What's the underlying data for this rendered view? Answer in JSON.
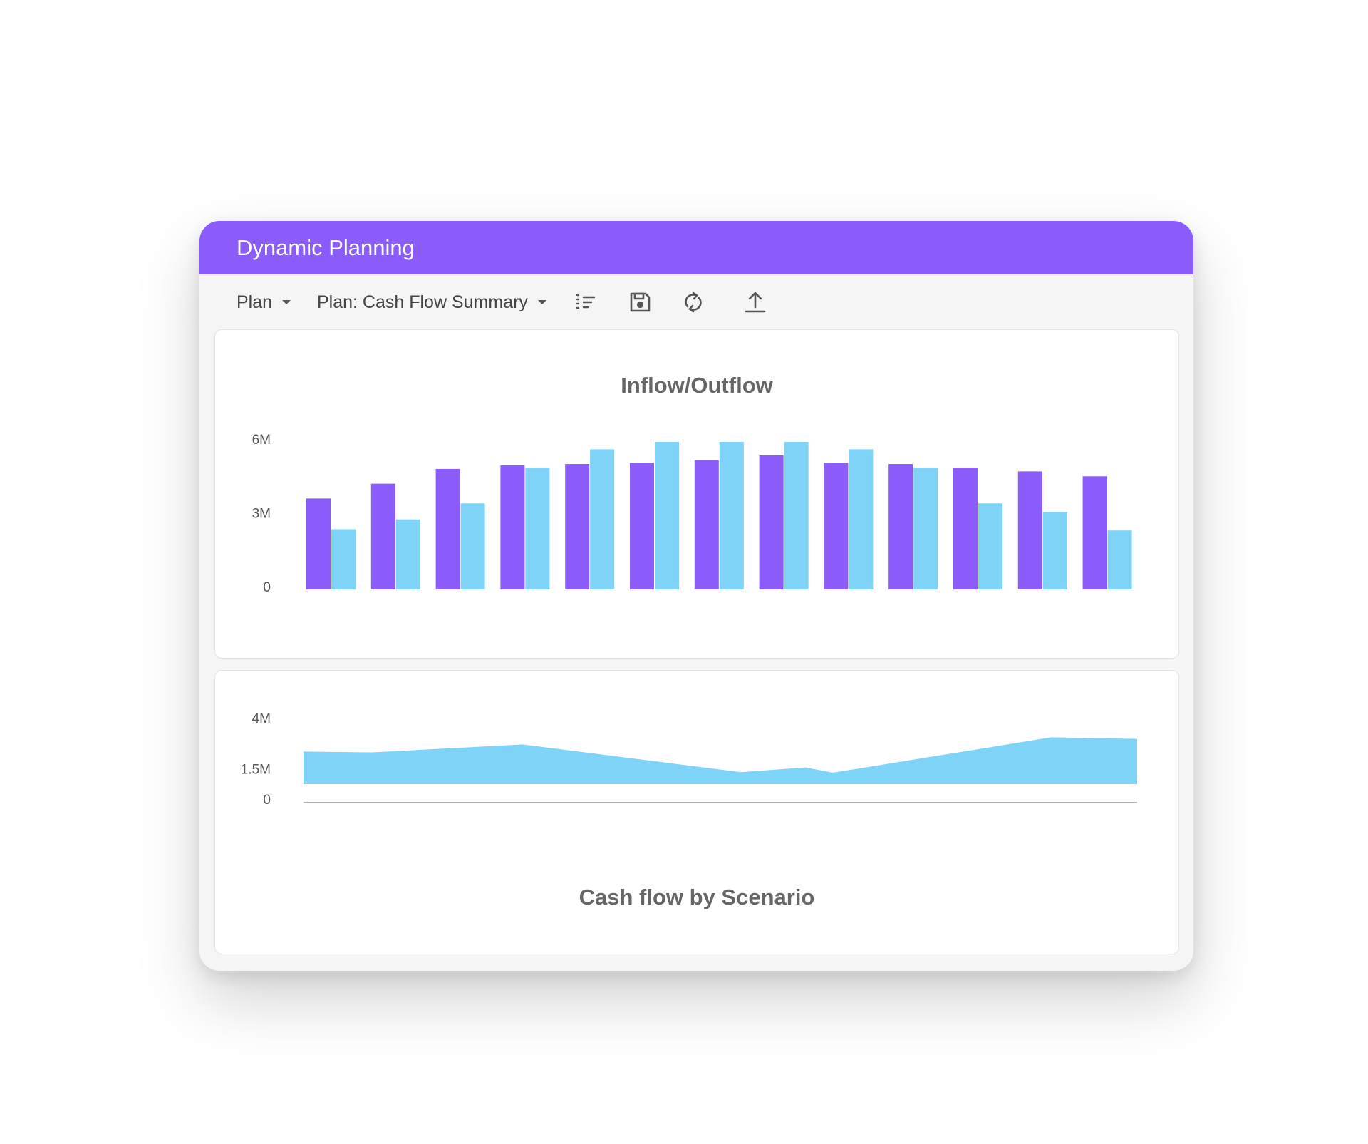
{
  "app": {
    "title": "Dynamic Planning"
  },
  "toolbar": {
    "plan_dropdown": "Plan",
    "view_dropdown": "Plan: Cash Flow Summary",
    "icons": [
      "filter-list-icon",
      "save-icon",
      "refresh-icon",
      "upload-icon"
    ]
  },
  "colors": {
    "accent": "#8b5cf9",
    "secondary": "#7fd3f7"
  },
  "chart_data": [
    {
      "type": "bar",
      "title": "Inflow/Outflow",
      "y_ticks": [
        "6M",
        "3M",
        "0"
      ],
      "ylim": [
        0,
        6000000
      ],
      "grid": false,
      "series": [
        {
          "values": [
            3700000,
            4300000,
            4900000,
            5050000,
            5100000,
            5150000,
            5250000,
            5450000,
            5150000,
            5100000,
            4950000,
            4800000,
            4600000
          ]
        },
        {
          "values": [
            2450000,
            2850000,
            3500000,
            4950000,
            5700000,
            6000000,
            6000000,
            6000000,
            5700000,
            4950000,
            3500000,
            3150000,
            2400000
          ]
        }
      ]
    },
    {
      "type": "area",
      "title": "Cash flow by Scenario",
      "y_ticks": [
        "4M",
        "1.5M",
        "0"
      ],
      "ylim": [
        0,
        4000000
      ],
      "grid": false,
      "series": [
        {
          "values": [
            2050000,
            2000000,
            2500000,
            750000,
            1050000,
            720000,
            2950000,
            2850000
          ]
        }
      ],
      "x": [
        0,
        0.083,
        0.263,
        0.525,
        0.602,
        0.635,
        0.897,
        1.0
      ]
    }
  ]
}
